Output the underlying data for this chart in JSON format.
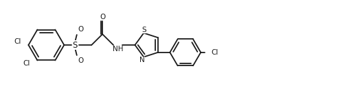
{
  "bg_color": "#ffffff",
  "line_color": "#1a1a1a",
  "line_width": 1.3,
  "font_size": 7.5,
  "figsize": [
    5.24,
    1.32
  ],
  "dpi": 100,
  "xlim": [
    0,
    10.5
  ],
  "ylim": [
    0,
    2.5
  ]
}
